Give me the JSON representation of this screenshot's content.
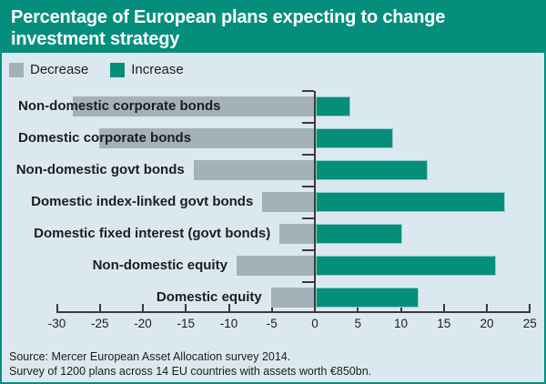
{
  "header": {
    "title": "Percentage of European plans expecting to change investment strategy"
  },
  "legend": {
    "items": [
      {
        "label": "Decrease",
        "color": "#A4B1B9"
      },
      {
        "label": "Increase",
        "color": "#068E7D"
      }
    ]
  },
  "chart_data": {
    "type": "bar",
    "orientation": "horizontal-diverging",
    "title": "Percentage of European plans expecting to change investment strategy",
    "categories": [
      "Non-domestic corporate bonds",
      "Domestic corporate bonds",
      "Non-domestic govt bonds",
      "Domestic index-linked govt bonds",
      "Domestic fixed interest (govt bonds)",
      "Non-domestic equity",
      "Domestic equity"
    ],
    "series": [
      {
        "name": "Decrease",
        "values": [
          -28,
          -25,
          -14,
          -6,
          -4,
          -9,
          -5
        ]
      },
      {
        "name": "Increase",
        "values": [
          4,
          9,
          13,
          22,
          10,
          21,
          12
        ]
      }
    ],
    "xlim": [
      -30,
      25
    ],
    "xticks": [
      -30,
      -25,
      -20,
      -15,
      -10,
      -5,
      0,
      5,
      10,
      15,
      20,
      25
    ],
    "grid": false,
    "legend_position": "top-left"
  },
  "source": {
    "line1": "Source: Mercer European Asset Allocation survey 2014.",
    "line2": "Survey of 1200 plans across 14 EU countries with assets worth €850bn."
  },
  "colors": {
    "teal": "#068E7D",
    "gray": "#A4B1B9",
    "background": "#DCE8F0",
    "axis": "#3A3A3A",
    "title_bg": "#068E7D",
    "title_text": "#FFFFFF"
  }
}
